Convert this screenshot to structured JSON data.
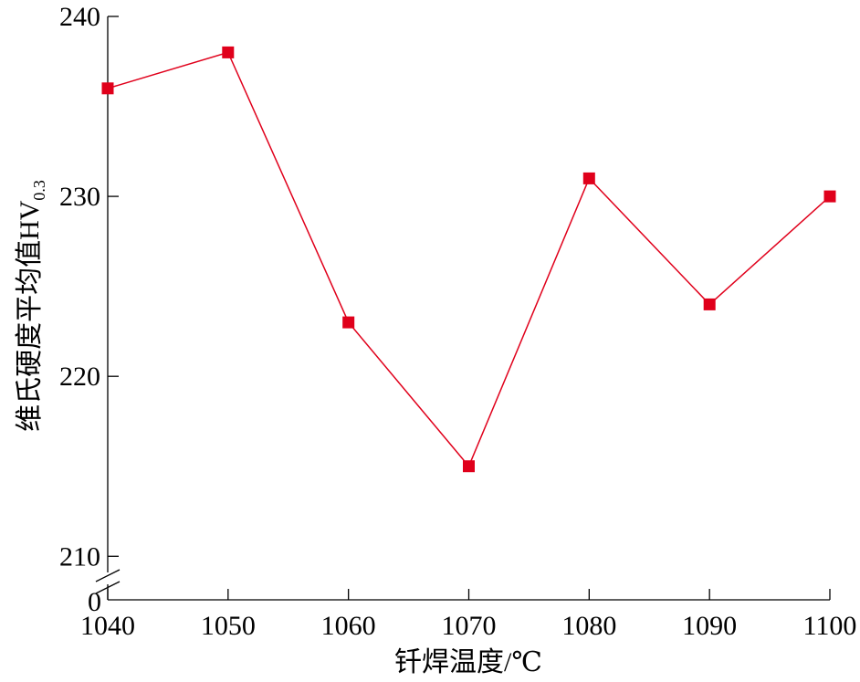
{
  "chart_data": {
    "type": "line",
    "title": "",
    "xlabel": "钎焊温度/℃",
    "ylabel_main": "维氏硬度平均值HV",
    "ylabel_sub": "0.3",
    "x": [
      1040,
      1050,
      1060,
      1070,
      1080,
      1090,
      1100
    ],
    "x_ticks": [
      "1040",
      "1050",
      "1060",
      "1070",
      "1080",
      "1090",
      "1100"
    ],
    "y_ticks": [
      "210",
      "220",
      "230",
      "240"
    ],
    "y_zero_label": "0",
    "xlim": [
      1040,
      1100
    ],
    "ylim": [
      209,
      240
    ],
    "axis_break": true,
    "grid": false,
    "series": [
      {
        "values": [
          236,
          238,
          223,
          215,
          231,
          224,
          230
        ],
        "color": "#e0001b",
        "marker": "square"
      }
    ]
  }
}
